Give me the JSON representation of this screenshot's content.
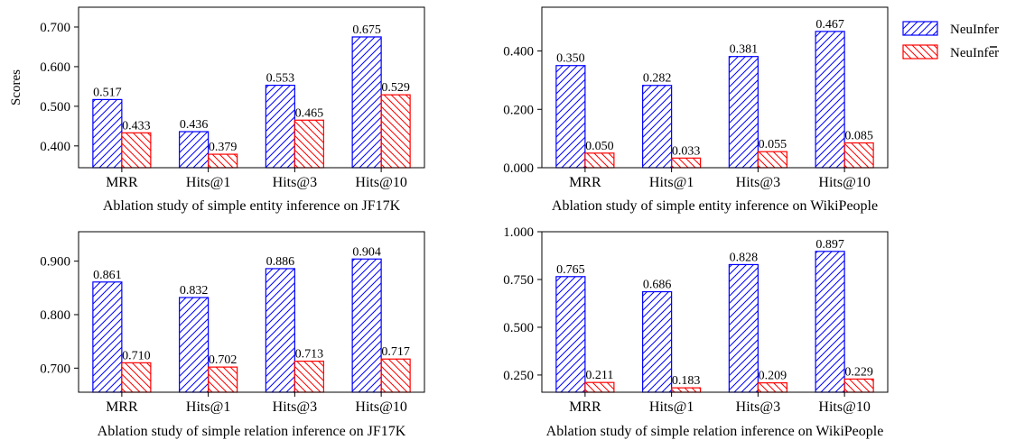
{
  "legend": {
    "entries": [
      {
        "label": "NeuInfer",
        "color": "#0000ff",
        "hatch": "forward"
      },
      {
        "label": "NeuInfer",
        "color": "#ff0000",
        "hatch": "backward",
        "overbar": true
      }
    ],
    "placement": "right"
  },
  "chart_data": [
    {
      "type": "bar",
      "title": "Ablation study of simple entity inference on JF17K",
      "xlabel": "",
      "ylabel": "Scores",
      "categories": [
        "MRR",
        "Hits@1",
        "Hits@3",
        "Hits@10"
      ],
      "series": [
        {
          "name": "NeuInfer",
          "values": [
            0.517,
            0.436,
            0.553,
            0.675
          ],
          "labels": [
            "0.517",
            "0.436",
            "0.553",
            "0.675"
          ]
        },
        {
          "name": "NeuInfer̅",
          "values": [
            0.433,
            0.379,
            0.465,
            0.529
          ],
          "labels": [
            "0.433",
            "0.379",
            "0.465",
            "0.529"
          ]
        }
      ],
      "ylim": [
        0.345,
        0.75
      ],
      "yticks": [
        0.4,
        0.5,
        0.6,
        0.7
      ],
      "ytick_labels": [
        "0.400",
        "0.500",
        "0.600",
        "0.700"
      ],
      "grid": false
    },
    {
      "type": "bar",
      "title": "Ablation study of simple entity inference on WikiPeople",
      "xlabel": "",
      "ylabel": "",
      "categories": [
        "MRR",
        "Hits@1",
        "Hits@3",
        "Hits@10"
      ],
      "series": [
        {
          "name": "NeuInfer",
          "values": [
            0.35,
            0.282,
            0.381,
            0.467
          ],
          "labels": [
            "0.350",
            "0.282",
            "0.381",
            "0.467"
          ]
        },
        {
          "name": "NeuInfer̅",
          "values": [
            0.05,
            0.033,
            0.055,
            0.085
          ],
          "labels": [
            "0.050",
            "0.033",
            "0.055",
            "0.085"
          ]
        }
      ],
      "ylim": [
        0,
        0.55
      ],
      "yticks": [
        0,
        0.2,
        0.4
      ],
      "ytick_labels": [
        "0.000",
        "0.200",
        "0.400"
      ],
      "grid": false
    },
    {
      "type": "bar",
      "title": "Ablation study of simple relation inference on JF17K",
      "xlabel": "",
      "ylabel": "",
      "categories": [
        "MRR",
        "Hits@1",
        "Hits@3",
        "Hits@10"
      ],
      "series": [
        {
          "name": "NeuInfer",
          "values": [
            0.861,
            0.832,
            0.886,
            0.904
          ],
          "labels": [
            "0.861",
            "0.832",
            "0.886",
            "0.904"
          ]
        },
        {
          "name": "NeuInfer̅",
          "values": [
            0.71,
            0.702,
            0.713,
            0.717
          ],
          "labels": [
            "0.710",
            "0.702",
            "0.713",
            "0.717"
          ]
        }
      ],
      "ylim": [
        0.655,
        0.955
      ],
      "yticks": [
        0.7,
        0.8,
        0.9
      ],
      "ytick_labels": [
        "0.700",
        "0.800",
        "0.900"
      ],
      "grid": false
    },
    {
      "type": "bar",
      "title": "Ablation study of simple relation inference on WikiPeople",
      "xlabel": "",
      "ylabel": "",
      "categories": [
        "MRR",
        "Hits@1",
        "Hits@3",
        "Hits@10"
      ],
      "series": [
        {
          "name": "NeuInfer",
          "values": [
            0.765,
            0.686,
            0.828,
            0.897
          ],
          "labels": [
            "0.765",
            "0.686",
            "0.828",
            "0.897"
          ]
        },
        {
          "name": "NeuInfer̅",
          "values": [
            0.211,
            0.183,
            0.209,
            0.229
          ],
          "labels": [
            "0.211",
            "0.183",
            "0.209",
            "0.229"
          ]
        }
      ],
      "ylim": [
        0.16,
        1.0
      ],
      "yticks": [
        0.25,
        0.5,
        0.75,
        1.0
      ],
      "ytick_labels": [
        "0.250",
        "0.500",
        "0.750",
        "1.000"
      ],
      "grid": false
    }
  ]
}
